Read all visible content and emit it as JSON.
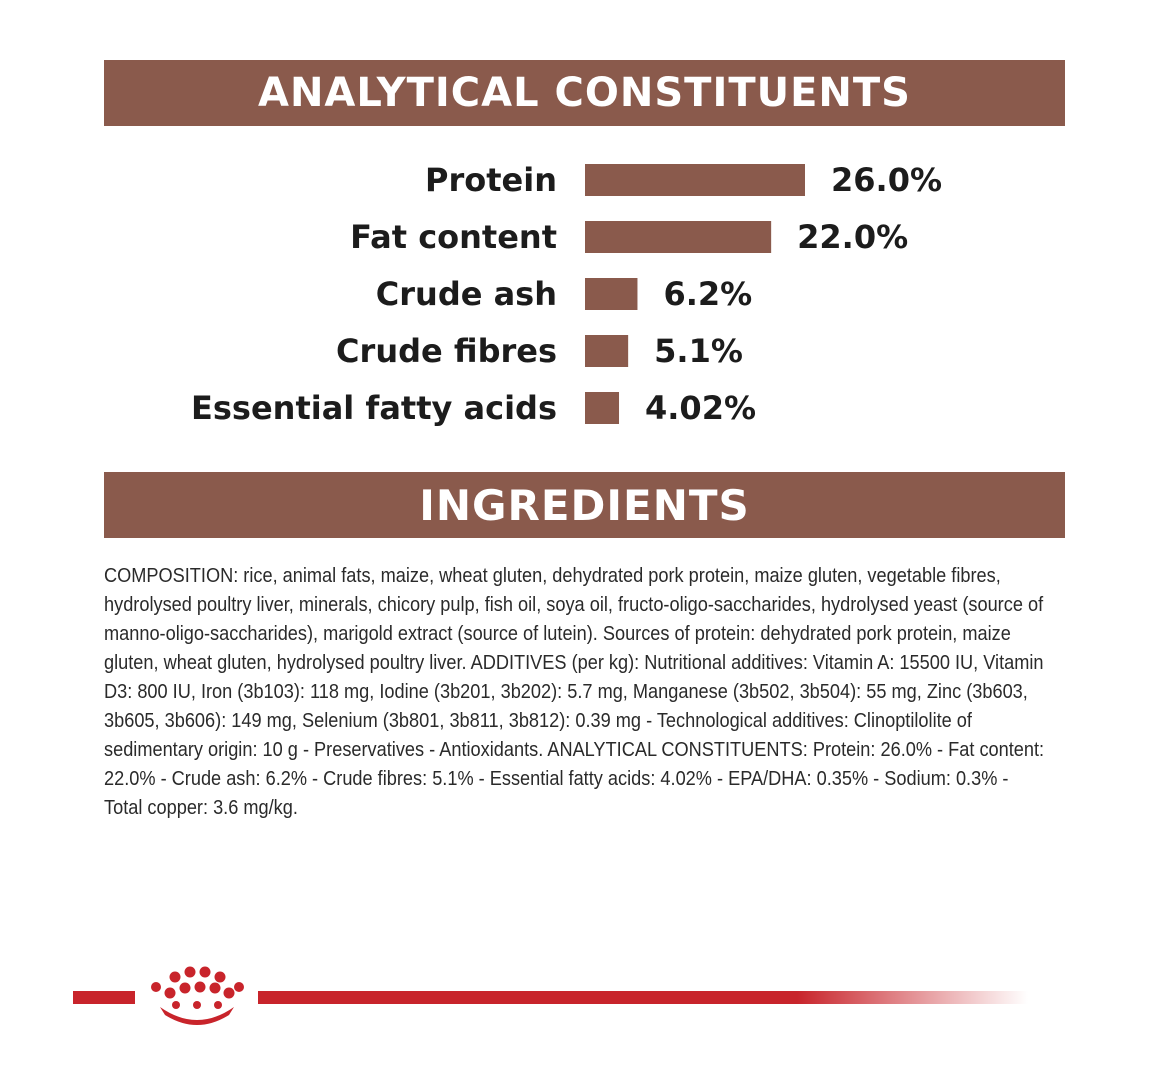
{
  "colors": {
    "banner": "#8a5a4c",
    "bar": "#8a5a4c",
    "brand_red": "#c8242b",
    "text": "#1c1c1c"
  },
  "headers": {
    "analytical": "ANALYTICAL CONSTITUENTS",
    "ingredients": "INGREDIENTS"
  },
  "chart_data": {
    "type": "bar",
    "orientation": "horizontal",
    "title": "ANALYTICAL CONSTITUENTS",
    "categories": [
      "Protein",
      "Fat content",
      "Crude ash",
      "Crude fibres",
      "Essential fatty acids"
    ],
    "values": [
      26.0,
      22.0,
      6.2,
      5.1,
      4.02
    ],
    "value_labels": [
      "26.0%",
      "22.0%",
      "6.2%",
      "5.1%",
      "4.02%"
    ],
    "unit": "%",
    "grid": false,
    "legend": "none"
  },
  "ingredients": {
    "text": "COMPOSITION: rice, animal fats, maize, wheat gluten, dehydrated pork protein, maize gluten, vegetable fibres, hydrolysed poultry liver, minerals, chicory pulp, fish oil, soya oil, fructo-oligo-saccharides, hydrolysed yeast (source of manno-oligo-saccharides), marigold extract (source of lutein). Sources of protein: dehydrated pork protein, maize gluten, wheat gluten, hydrolysed poultry liver. ADDITIVES (per kg): Nutritional additives: Vitamin A: 15500 IU, Vitamin D3: 800 IU, Iron (3b103): 118 mg, Iodine (3b201, 3b202): 5.7 mg, Manganese (3b502, 3b504): 55 mg, Zinc (3b603, 3b605, 3b606): 149 mg, Selenium (3b801, 3b811, 3b812): 0.39 mg - Technological additives: Clinoptilolite of sedimentary origin: 10 g - Preservatives - Antioxidants. ANALYTICAL CONSTITUENTS: Protein: 26.0% - Fat content: 22.0% - Crude ash: 6.2% - Crude fibres: 5.1% - Essential fatty acids: 4.02% - EPA/DHA: 0.35% - Sodium: 0.3% - Total copper: 3.6 mg/kg."
  },
  "footer": {
    "logo_icon": "crown-icon"
  }
}
